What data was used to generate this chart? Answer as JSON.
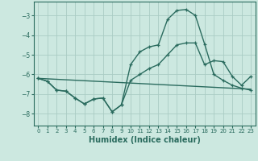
{
  "xlabel": "Humidex (Indice chaleur)",
  "background_color": "#cce8e0",
  "grid_color": "#aaccc4",
  "line_color": "#2a6b5e",
  "xlim": [
    -0.5,
    23.5
  ],
  "ylim": [
    -8.6,
    -2.3
  ],
  "yticks": [
    -8,
    -7,
    -6,
    -5,
    -4,
    -3
  ],
  "xticks": [
    0,
    1,
    2,
    3,
    4,
    5,
    6,
    7,
    8,
    9,
    10,
    11,
    12,
    13,
    14,
    15,
    16,
    17,
    18,
    19,
    20,
    21,
    22,
    23
  ],
  "line1_x": [
    0,
    1,
    2,
    3,
    4,
    5,
    6,
    7,
    8,
    9,
    10,
    11,
    12,
    13,
    14,
    15,
    16,
    17,
    18,
    19,
    20,
    21,
    22,
    23
  ],
  "line1_y": [
    -6.2,
    -6.35,
    -6.8,
    -6.85,
    -7.2,
    -7.5,
    -7.25,
    -7.2,
    -7.9,
    -7.55,
    -5.5,
    -4.85,
    -4.6,
    -4.5,
    -3.2,
    -2.75,
    -2.7,
    -3.0,
    -4.45,
    -6.0,
    -6.3,
    -6.55,
    -6.7,
    -6.8
  ],
  "line2_x": [
    0,
    1,
    2,
    3,
    4,
    5,
    6,
    7,
    8,
    9,
    10,
    11,
    12,
    13,
    14,
    15,
    16,
    17,
    18,
    19,
    20,
    21,
    22,
    23
  ],
  "line2_y": [
    -6.2,
    -6.35,
    -6.8,
    -6.85,
    -7.2,
    -7.5,
    -7.25,
    -7.2,
    -7.9,
    -7.55,
    -6.3,
    -6.0,
    -5.7,
    -5.5,
    -5.0,
    -4.5,
    -4.4,
    -4.4,
    -5.5,
    -5.3,
    -5.35,
    -6.1,
    -6.55,
    -6.1
  ],
  "line3_x": [
    0,
    23
  ],
  "line3_y": [
    -6.2,
    -6.75
  ]
}
